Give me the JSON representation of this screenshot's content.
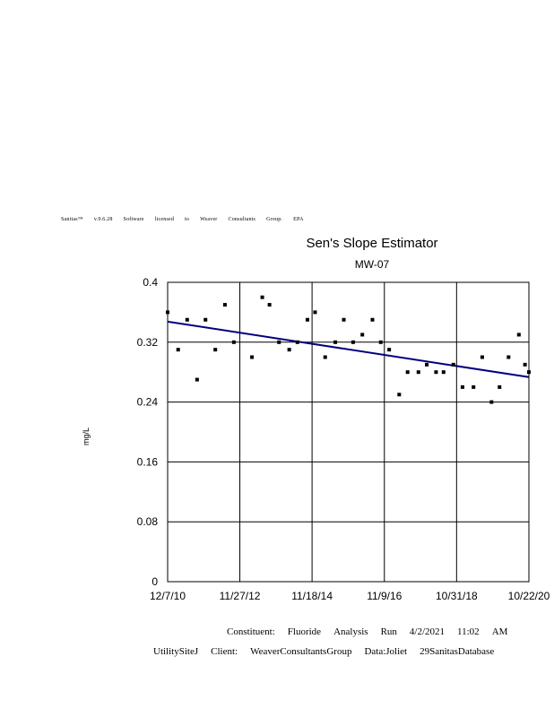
{
  "license_text": [
    "Sanitas™",
    "v.9.6.28",
    "Software",
    "licensed",
    "to",
    "Weaver",
    "Consultants",
    "Group.",
    "EPA"
  ],
  "footer": {
    "line1": [
      "Constituent:",
      "Fluoride",
      "Analysis",
      "Run",
      "4/2/2021",
      "11:02",
      "AM"
    ],
    "line2": [
      "UtilitySiteJ",
      "Client:",
      "WeaverConsultantsGroup",
      "Data:Joliet",
      "29SanitasDatabase"
    ]
  },
  "chart_data": {
    "type": "scatter",
    "title": "Sen's Slope Estimator",
    "subtitle": "MW-07",
    "xlabel": "",
    "ylabel": "mg/L",
    "x_tick_labels": [
      "12/7/10",
      "11/27/12",
      "11/18/14",
      "11/9/16",
      "10/31/18",
      "10/22/20"
    ],
    "x_ticks": [
      "2010-12-07",
      "2012-11-27",
      "2014-11-18",
      "2016-11-09",
      "2018-10-31",
      "2020-10-22"
    ],
    "xlim": [
      "2010-12-07",
      "2020-10-22"
    ],
    "y_ticks": [
      0,
      0.08,
      0.16,
      0.24,
      0.32,
      0.4
    ],
    "y_tick_labels": [
      "0",
      "0.08",
      "0.16",
      "0.24",
      "0.32",
      "0.4"
    ],
    "ylim": [
      0,
      0.4
    ],
    "grid": true,
    "series": [
      {
        "name": "",
        "color": "#000000",
        "points": [
          {
            "x": "2010-12-07",
            "y": 0.36
          },
          {
            "x": "2011-03-22",
            "y": 0.31
          },
          {
            "x": "2011-06-20",
            "y": 0.35
          },
          {
            "x": "2011-09-27",
            "y": 0.27
          },
          {
            "x": "2011-12-20",
            "y": 0.35
          },
          {
            "x": "2012-03-27",
            "y": 0.31
          },
          {
            "x": "2012-07-01",
            "y": 0.37
          },
          {
            "x": "2012-09-28",
            "y": 0.32
          },
          {
            "x": "2013-03-28",
            "y": 0.3
          },
          {
            "x": "2013-07-09",
            "y": 0.38
          },
          {
            "x": "2013-09-19",
            "y": 0.37
          },
          {
            "x": "2013-12-23",
            "y": 0.32
          },
          {
            "x": "2014-04-04",
            "y": 0.31
          },
          {
            "x": "2014-06-25",
            "y": 0.32
          },
          {
            "x": "2014-10-03",
            "y": 0.35
          },
          {
            "x": "2014-12-18",
            "y": 0.36
          },
          {
            "x": "2015-03-29",
            "y": 0.3
          },
          {
            "x": "2015-07-08",
            "y": 0.32
          },
          {
            "x": "2015-10-01",
            "y": 0.35
          },
          {
            "x": "2016-01-02",
            "y": 0.32
          },
          {
            "x": "2016-04-03",
            "y": 0.33
          },
          {
            "x": "2016-07-13",
            "y": 0.35
          },
          {
            "x": "2016-10-04",
            "y": 0.32
          },
          {
            "x": "2016-12-27",
            "y": 0.31
          },
          {
            "x": "2017-04-06",
            "y": 0.25
          },
          {
            "x": "2017-06-29",
            "y": 0.28
          },
          {
            "x": "2017-10-15",
            "y": 0.28
          },
          {
            "x": "2018-01-06",
            "y": 0.29
          },
          {
            "x": "2018-04-09",
            "y": 0.28
          },
          {
            "x": "2018-06-23",
            "y": 0.28
          },
          {
            "x": "2018-09-29",
            "y": 0.29
          },
          {
            "x": "2018-12-29",
            "y": 0.26
          },
          {
            "x": "2019-04-18",
            "y": 0.26
          },
          {
            "x": "2019-07-14",
            "y": 0.3
          },
          {
            "x": "2019-10-15",
            "y": 0.24
          },
          {
            "x": "2020-01-03",
            "y": 0.26
          },
          {
            "x": "2020-04-02",
            "y": 0.3
          },
          {
            "x": "2020-07-14",
            "y": 0.33
          },
          {
            "x": "2020-09-13",
            "y": 0.29
          },
          {
            "x": "2020-10-22",
            "y": 0.28
          }
        ]
      }
    ],
    "trend_line": {
      "color": "#000080",
      "points": [
        {
          "x": "2010-12-07",
          "y": 0.3475
        },
        {
          "x": "2020-10-22",
          "y": 0.2733
        }
      ]
    }
  }
}
